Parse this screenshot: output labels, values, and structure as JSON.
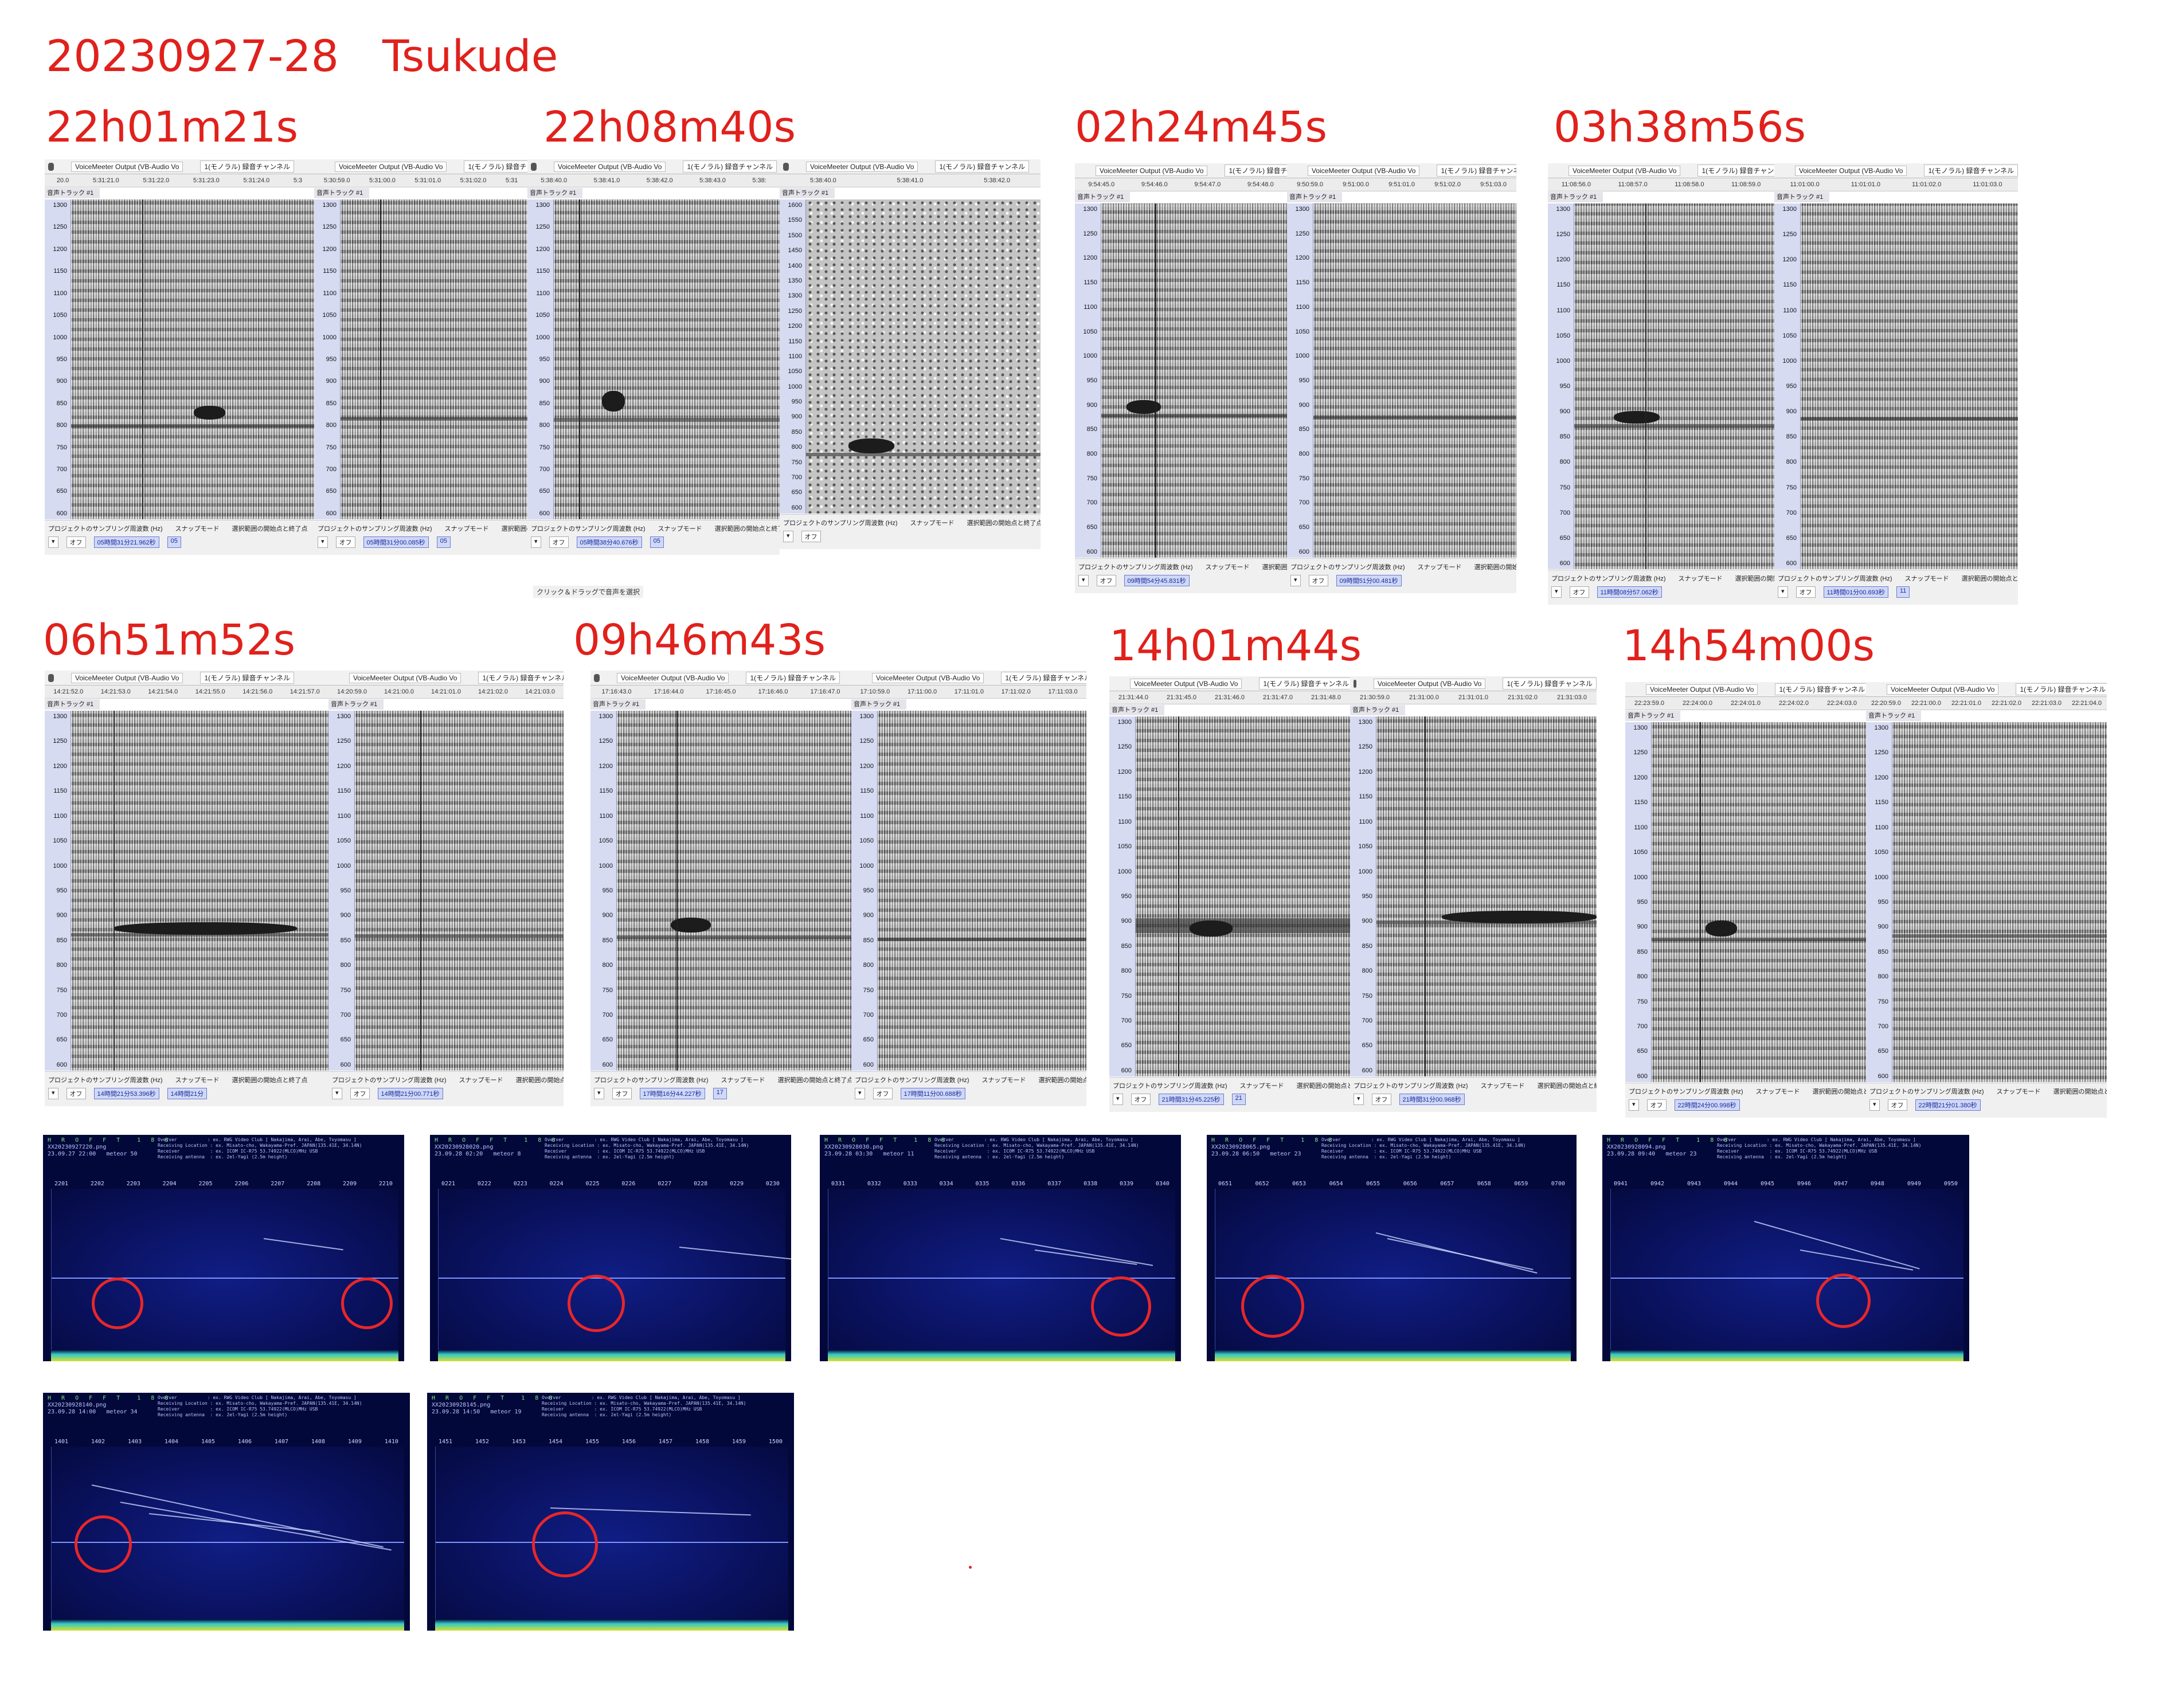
{
  "title": "20230927-28　Tsukude",
  "colors": {
    "label_red": "#e0211c",
    "spectrogram_axis": "#d6dbf2",
    "hrofft_bg": "#03083a",
    "circle": "#e8262a"
  },
  "time_labels": [
    "22h01m21s",
    "22h08m40s",
    "02h24m45s",
    "03h38m56s",
    "06h51m52s",
    "09h46m43s",
    "14h01m44s",
    "14h54m00s"
  ],
  "audacity": {
    "device": "VoiceMeeter Output (VB-Audio Vo",
    "channel": "1(モノラル) 録音チャンネル",
    "track": "音声トラック #1",
    "rate_label": "プロジェクトのサンプリング周波数 (Hz)",
    "snap_label": "スナップモード",
    "snap_value": "オフ",
    "sel_label": "選択範囲の開始点と終了点",
    "drag_hint": "クリック＆ドラッグで音声を選択",
    "yticks": [
      "1300",
      "1250",
      "1200",
      "1150",
      "1100",
      "1050",
      "1000",
      "950",
      "900",
      "850",
      "800",
      "750",
      "700",
      "650",
      "600"
    ],
    "yticks_wide": [
      "1600",
      "1550",
      "1500",
      "1450",
      "1400",
      "1350",
      "1300",
      "1250",
      "1200",
      "1150",
      "1100",
      "1050",
      "1000",
      "950",
      "900",
      "850",
      "800",
      "750",
      "700",
      "650",
      "600"
    ],
    "panels": [
      {
        "ruler": [
          "20.0",
          "5:31:21.0",
          "5:31:22.0",
          "5:31:23.0",
          "5:31:24.0",
          "5:3"
        ],
        "sel": "05時間31分21.962秒",
        "sel2": "05"
      },
      {
        "ruler": [
          "5:30:59.0",
          "5:31:00.0",
          "5:31:01.0",
          "5:31:02.0",
          "5:31"
        ],
        "sel": "05時間31分00.085秒",
        "sel2": "05"
      },
      {
        "ruler": [
          "5:38:40.0",
          "5:38:41.0",
          "5:38:42.0",
          "5:38:43.0",
          "5:38:"
        ],
        "sel": "05時間38分40.676秒",
        "sel2": "05"
      },
      {
        "ruler": [
          "5:38:40.0",
          "5:38:41.0",
          "5:38:42.0"
        ],
        "sel": "",
        "sel2": ""
      },
      {
        "ruler": [
          "9:54:45.0",
          "9:54:46.0",
          "9:54:47.0",
          "9:54:48.0"
        ],
        "sel": "09時間54分45.831秒",
        "sel2": ""
      },
      {
        "ruler": [
          "9:50:59.0",
          "9:51:00.0",
          "9:51:01.0",
          "9:51:02.0",
          "9:51:03.0"
        ],
        "sel": "09時間51分00.481秒",
        "sel2": ""
      },
      {
        "ruler": [
          "11:08:56.0",
          "11:08:57.0",
          "11:08:58.0",
          "11:08:59.0"
        ],
        "sel": "11時間08分57.062秒",
        "sel2": ""
      },
      {
        "ruler": [
          "11:01:00.0",
          "11:01:01.0",
          "11:01:02.0",
          "11:01:03.0"
        ],
        "sel": "11時間01分00.693秒",
        "sel2": "11"
      },
      {
        "ruler": [
          "14:21:52.0",
          "14:21:53.0",
          "14:21:54.0",
          "14:21:55.0",
          "14:21:56.0",
          "14:21:57.0"
        ],
        "sel": "14時間21分53.396秒",
        "sel2": "14時間21分"
      },
      {
        "ruler": [
          "14:20:59.0",
          "14:21:00.0",
          "14:21:01.0",
          "14:21:02.0",
          "14:21:03.0"
        ],
        "sel": "14時間21分00.771秒",
        "sel2": ""
      },
      {
        "ruler": [
          "17:16:43.0",
          "17:16:44.0",
          "17:16:45.0",
          "17:16:46.0",
          "17:16:47.0"
        ],
        "sel": "17時間16分44.227秒",
        "sel2": "17"
      },
      {
        "ruler": [
          "17:10:59.0",
          "17:11:00.0",
          "17:11:01.0",
          "17:11:02.0",
          "17:11:03.0"
        ],
        "sel": "17時間11分00.688秒",
        "sel2": ""
      },
      {
        "ruler": [
          "21:31:44.0",
          "21:31:45.0",
          "21:31:46.0",
          "21:31:47.0",
          "21:31:48.0"
        ],
        "sel": "21時間31分45.225秒",
        "sel2": "21"
      },
      {
        "ruler": [
          "21:30:59.0",
          "21:31:00.0",
          "21:31:01.0",
          "21:31:02.0",
          "21:31:03.0"
        ],
        "sel": "21時間31分00.968秒",
        "sel2": ""
      },
      {
        "ruler": [
          "22:23:59.0",
          "22:24:00.0",
          "22:24:01.0",
          "22:24:02.0",
          "22:24:03.0"
        ],
        "sel": "22時間24分00.998秒",
        "sel2": ""
      },
      {
        "ruler": [
          "22:20:59.0",
          "22:21:00.0",
          "22:21:01.0",
          "22:21:02.0",
          "22:21:03.0",
          "22:21:04.0"
        ],
        "sel": "22時間21分01.380秒",
        "sel2": ""
      }
    ]
  },
  "hrofft": {
    "heading": "H R O F F T  1 8 8",
    "info": "Overver           : ex. RWG Video Club [ Nakajima, Arai, Abe, Toyomasu ]\nReceiving Location : ex. Misato-cho, Wakayama-Pref. JAPAN(135.41E, 34.14N)\nReceiver           : ex. ICOM IC-R75 53.74922(MLCO)MHz USB\nReceiving antenna  : ex. 2el-Yagi (2.5m height)",
    "panels": [
      {
        "file": "XX20230927220.png",
        "date": "23.09.27 22:00",
        "meteor": "meteor",
        "count": "50",
        "ticks": [
          "2201",
          "2202",
          "2203",
          "2204",
          "2205",
          "2206",
          "2207",
          "2208",
          "2209",
          "2210"
        ]
      },
      {
        "file": "XX20230928020.png",
        "date": "23.09.28 02:20",
        "meteor": "meteor",
        "count": "8",
        "ticks": [
          "0221",
          "0222",
          "0223",
          "0224",
          "0225",
          "0226",
          "0227",
          "0228",
          "0229",
          "0230"
        ]
      },
      {
        "file": "XX20230928030.png",
        "date": "23.09.28 03:30",
        "meteor": "meteor",
        "count": "11",
        "ticks": [
          "0331",
          "0332",
          "0333",
          "0334",
          "0335",
          "0336",
          "0337",
          "0338",
          "0339",
          "0340"
        ]
      },
      {
        "file": "XX20230928065.png",
        "date": "23.09.28 06:50",
        "meteor": "meteor",
        "count": "23",
        "ticks": [
          "0651",
          "0652",
          "0653",
          "0654",
          "0655",
          "0656",
          "0657",
          "0658",
          "0659",
          "0700"
        ]
      },
      {
        "file": "XX20230928094.png",
        "date": "23.09.28 09:40",
        "meteor": "meteor",
        "count": "23",
        "ticks": [
          "0941",
          "0942",
          "0943",
          "0944",
          "0945",
          "0946",
          "0947",
          "0948",
          "0949",
          "0950"
        ]
      },
      {
        "file": "XX20230928140.png",
        "date": "23.09.28 14:00",
        "meteor": "meteor",
        "count": "34",
        "ticks": [
          "1401",
          "1402",
          "1403",
          "1404",
          "1405",
          "1406",
          "1407",
          "1408",
          "1409",
          "1410"
        ]
      },
      {
        "file": "XX20230928145.png",
        "date": "23.09.28 14:50",
        "meteor": "meteor",
        "count": "19",
        "ticks": [
          "1451",
          "1452",
          "1453",
          "1454",
          "1455",
          "1456",
          "1457",
          "1458",
          "1459",
          "1500"
        ]
      }
    ]
  }
}
